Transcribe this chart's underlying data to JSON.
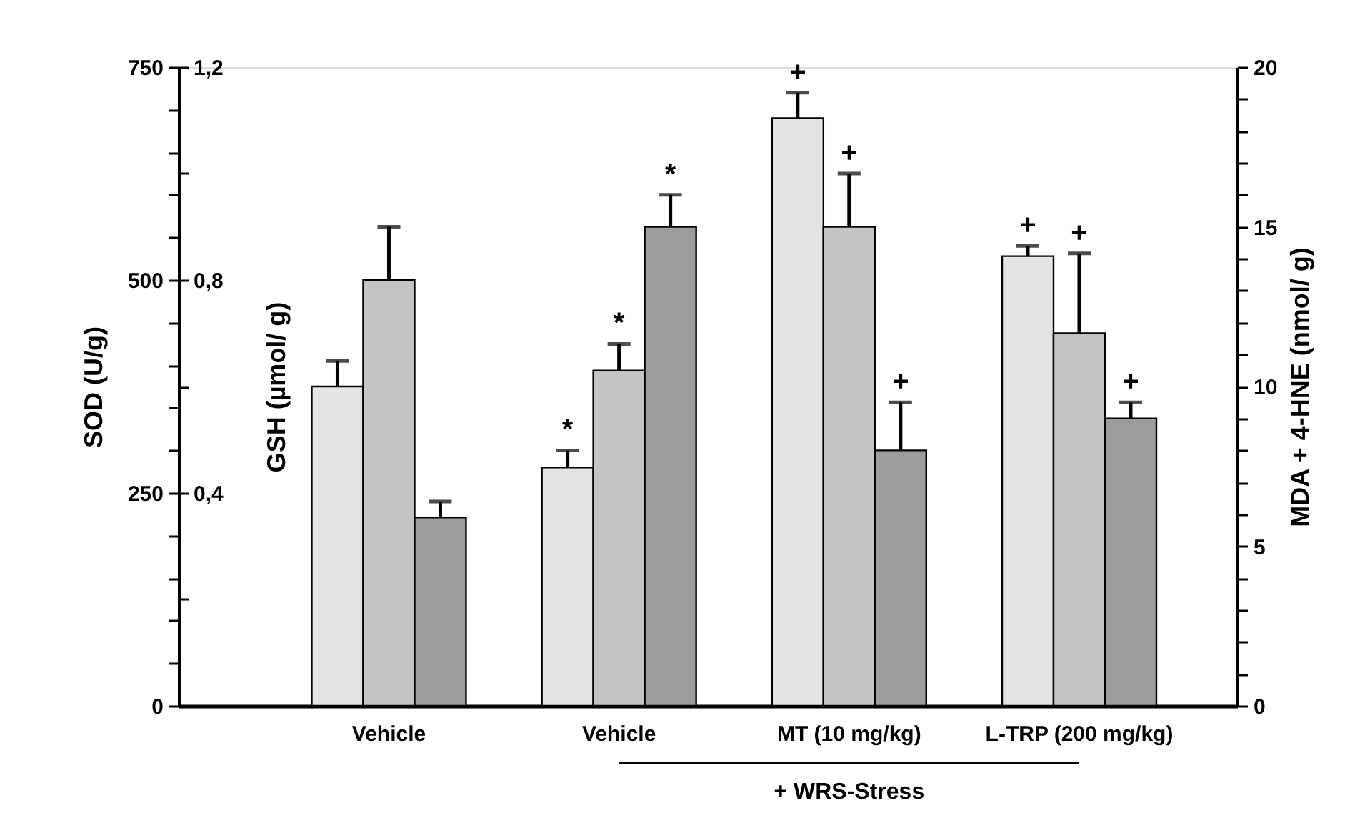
{
  "chart_data": {
    "type": "bar",
    "categories": [
      "Vehicle",
      "Vehicle",
      "MT (10 mg/kg)",
      "L-TRP (200 mg/kg)"
    ],
    "ylabel": "SOD (U/g)",
    "y2label": "GSH (µmol/ g)",
    "y3label": "MDA + 4-HNE (nmol/ g)",
    "ylim": [
      0,
      750
    ],
    "yticks": [
      0,
      {
        "value": 50,
        "label": null
      },
      {
        "value": 100,
        "label": null
      },
      {
        "value": 150,
        "label": null
      },
      {
        "value": 200,
        "label": null
      },
      250,
      {
        "value": 300,
        "label": null
      },
      {
        "value": 350,
        "label": null
      },
      {
        "value": 400,
        "label": null
      },
      {
        "value": 450,
        "label": null
      },
      500,
      {
        "value": 550,
        "label": null
      },
      {
        "value": 600,
        "label": null
      },
      {
        "value": 650,
        "label": null
      },
      {
        "value": 700,
        "label": null
      },
      750
    ],
    "y2lim": [
      0,
      1.2
    ],
    "y2ticks": [
      {
        "value": 0.2,
        "label": null
      },
      {
        "value": 0.4,
        "label": "0,4"
      },
      {
        "value": 0.6,
        "label": null
      },
      {
        "value": 0.8,
        "label": "0,8"
      },
      {
        "value": 1.0,
        "label": null
      },
      {
        "value": 1.2,
        "label": "1,2"
      }
    ],
    "y3lim": [
      0,
      20
    ],
    "y3ticks": [
      0,
      {
        "value": 1,
        "label": null
      },
      {
        "value": 2,
        "label": null
      },
      {
        "value": 3,
        "label": null
      },
      {
        "value": 4,
        "label": null
      },
      5,
      {
        "value": 6,
        "label": null
      },
      {
        "value": 7,
        "label": null
      },
      {
        "value": 8,
        "label": null
      },
      {
        "value": 9,
        "label": null
      },
      10,
      {
        "value": 11,
        "label": null
      },
      {
        "value": 12,
        "label": null
      },
      {
        "value": 13,
        "label": null
      },
      {
        "value": 14,
        "label": null
      },
      15,
      {
        "value": 16,
        "label": null
      },
      {
        "value": 17,
        "label": null
      },
      {
        "value": 18,
        "label": null
      },
      {
        "value": 19,
        "label": null
      },
      20
    ],
    "grid": false,
    "series": [
      {
        "color": "#e4e4e4",
        "axis": "y",
        "values": [
          375,
          280,
          690,
          528
        ],
        "errors": [
          [
            375,
            405
          ],
          [
            280,
            300
          ],
          [
            690,
            720
          ],
          [
            528,
            540
          ]
        ],
        "value_labels": [
          null,
          "*",
          "+",
          "+"
        ]
      },
      {
        "color": "#c4c4c4",
        "axis": "y2",
        "values": [
          0.8,
          0.63,
          0.9,
          0.7
        ],
        "errors": [
          [
            0.8,
            0.9
          ],
          [
            0.63,
            0.68
          ],
          [
            0.9,
            1.0
          ],
          [
            0.7,
            0.85
          ]
        ],
        "value_labels": [
          null,
          "*",
          "+",
          "+"
        ]
      },
      {
        "color": "#9c9c9c",
        "axis": "y3",
        "values": [
          5.9,
          15.0,
          8.0,
          9.0
        ],
        "errors": [
          [
            5.9,
            6.4
          ],
          [
            15.0,
            16.0
          ],
          [
            8.0,
            9.5
          ],
          [
            9.0,
            9.5
          ]
        ],
        "value_labels": [
          null,
          "*",
          "+",
          "+"
        ]
      }
    ],
    "annotations": [
      "+ WRS-Stress"
    ]
  }
}
